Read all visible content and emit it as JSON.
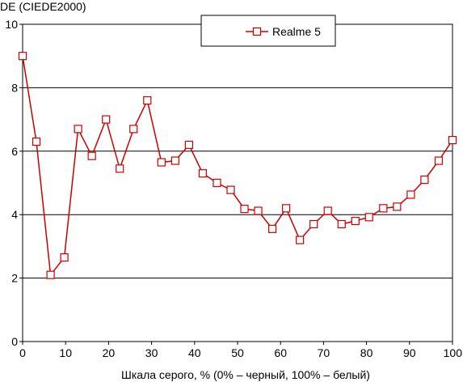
{
  "chart_data": {
    "type": "line",
    "title": "",
    "ylabel": "DE (CIEDE2000)",
    "xlabel": "Шкала серого, % (0% – черный, 100% – белый)",
    "xlim": [
      0,
      100
    ],
    "ylim": [
      0,
      10
    ],
    "xticks": [
      "0",
      "10",
      "20",
      "30",
      "40",
      "50",
      "60",
      "70",
      "80",
      "90",
      "100"
    ],
    "yticks": [
      "0",
      "2",
      "4",
      "6",
      "8",
      "10"
    ],
    "grid": "horizontal",
    "legend_position": "top-center",
    "series_color": "#cc0000",
    "series": [
      {
        "name": "Realme 5",
        "x": [
          0,
          3.2,
          6.5,
          9.7,
          12.9,
          16.1,
          19.4,
          22.6,
          25.8,
          29.0,
          32.3,
          35.5,
          38.7,
          41.9,
          45.2,
          48.4,
          51.6,
          54.8,
          58.1,
          61.3,
          64.5,
          67.7,
          71.0,
          74.2,
          77.4,
          80.6,
          83.9,
          87.1,
          90.3,
          93.5,
          96.8,
          100
        ],
        "values": [
          9.0,
          6.3,
          2.1,
          2.65,
          6.7,
          5.85,
          7.0,
          5.45,
          6.7,
          7.6,
          5.65,
          5.7,
          6.2,
          5.3,
          5.0,
          4.78,
          4.18,
          4.12,
          3.55,
          4.2,
          3.2,
          3.7,
          4.12,
          3.7,
          3.8,
          3.92,
          4.2,
          4.25,
          4.63,
          5.1,
          5.7,
          6.35
        ]
      }
    ]
  }
}
